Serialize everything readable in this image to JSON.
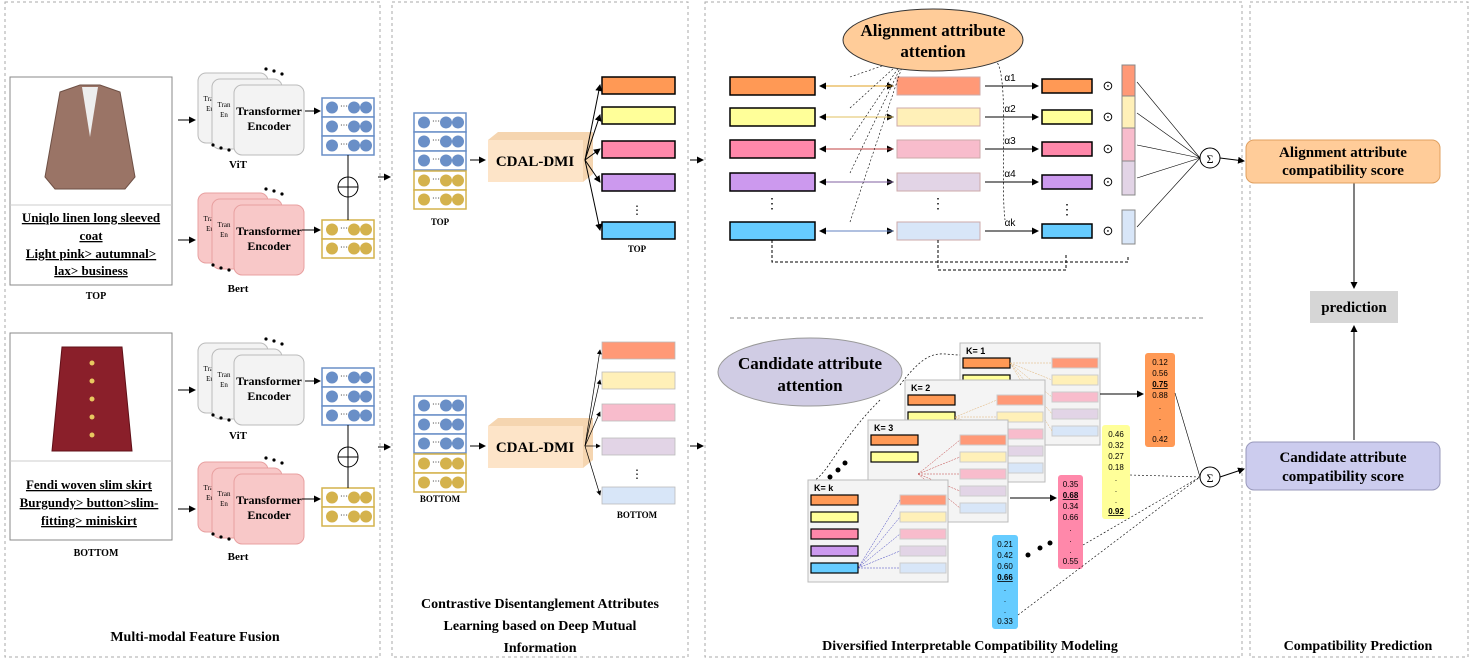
{
  "colors": {
    "orange": "#ff9955",
    "yellow": "#ffff99",
    "pink": "#ff88aa",
    "purple": "#cc99ee",
    "blue": "#66ccff",
    "pale_orange": "#ff9977",
    "pale_yellow": "#fff0b8",
    "pale_pink": "#f8bccc",
    "pale_purple": "#e2d4e6",
    "pale_blue": "#d8e6f8",
    "token_blue": "#6a8fc7",
    "token_gold": "#d4b24c",
    "align_box": "#ffcc99",
    "cand_box": "#ccccee",
    "pred_box": "#d6d6d6"
  },
  "sections": {
    "fusion": "Multi-modal Feature Fusion",
    "cdal": [
      "Contrastive Disentanglement Attributes",
      "Learning based on Deep Mutual",
      "Information"
    ],
    "modeling": "Diversified Interpretable Compatibility Modeling",
    "prediction": "Compatibility  Prediction"
  },
  "top_item": {
    "desc": [
      "Uniqlo linen long sleeved",
      "coat",
      "Light pink> autumnal>",
      "lax> business"
    ],
    "label": "TOP"
  },
  "bottom_item": {
    "desc": [
      "Fendi woven slim skirt",
      "Burgundy> button>slim-",
      "fitting> miniskirt"
    ],
    "label": "BOTTOM"
  },
  "encoder": {
    "title": [
      "Transformer",
      "Encoder"
    ],
    "stub": [
      "Tran",
      "En"
    ],
    "vit": "ViT",
    "bert": "Bert"
  },
  "cdal": {
    "label": "CDAL-DMI",
    "top": "TOP",
    "bottom": "BOTTOM"
  },
  "alignment": {
    "attention": [
      "Alignment attribute",
      "attention"
    ],
    "alphas": [
      "α1",
      "α2",
      "α3",
      "α4",
      "αk"
    ],
    "score": [
      "Alignment attribute",
      "compatibility score"
    ]
  },
  "candidate": {
    "attention": [
      "Candidate attribute",
      "attention"
    ],
    "frames": [
      "K= 1",
      "K= 2",
      "K= 3",
      "K= k"
    ],
    "score": [
      "Candidate attribute",
      "compatibility score"
    ],
    "scores": [
      {
        "color": "orange",
        "values": [
          "0.12",
          "0.56",
          "0.75",
          "0.88",
          ".",
          ".",
          ".",
          "0.42"
        ],
        "highlight": 2
      },
      {
        "color": "yellow",
        "values": [
          "0.46",
          "0.32",
          "0.27",
          "0.18",
          ".",
          ".",
          ".",
          "0.92"
        ],
        "highlight": 7
      },
      {
        "color": "pink",
        "values": [
          "0.35",
          "0.68",
          "0.34",
          "0.66",
          ".",
          ".",
          ".",
          "0.55"
        ],
        "highlight": 1
      },
      {
        "color": "blue",
        "values": [
          "0.21",
          "0.42",
          "0.60",
          "0.66",
          ".",
          ".",
          ".",
          "0.33"
        ],
        "highlight": 3
      }
    ]
  },
  "prediction": "prediction",
  "sum_symbol": "Σ",
  "dot_symbol": "⊙"
}
